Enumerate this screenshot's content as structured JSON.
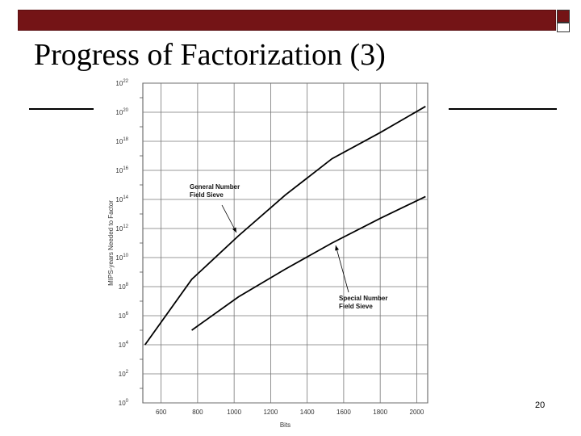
{
  "slide": {
    "title": "Progress of Factorization (3)",
    "page_number": "20",
    "colors": {
      "header_bar": "#741416"
    }
  },
  "chart_data": {
    "type": "line",
    "xlabel": "Bits",
    "ylabel": "MIPS-years Needed to Factor",
    "xlim": [
      500,
      2060
    ],
    "ylim": [
      0,
      22
    ],
    "y_log_base": 10,
    "grid": true,
    "x_ticks": [
      600,
      800,
      1000,
      1200,
      1400,
      1600,
      1800,
      2000
    ],
    "y_ticks": [
      {
        "base": "10",
        "exp": "0"
      },
      {
        "base": "10",
        "exp": "2"
      },
      {
        "base": "10",
        "exp": "4"
      },
      {
        "base": "10",
        "exp": "6"
      },
      {
        "base": "10",
        "exp": "8"
      },
      {
        "base": "10",
        "exp": "10"
      },
      {
        "base": "10",
        "exp": "12"
      },
      {
        "base": "10",
        "exp": "14"
      },
      {
        "base": "10",
        "exp": "16"
      },
      {
        "base": "10",
        "exp": "18"
      },
      {
        "base": "10",
        "exp": "20"
      },
      {
        "base": "10",
        "exp": "22"
      }
    ],
    "series": [
      {
        "name": "General Number Field Sieve",
        "label_lines": [
          "General Number",
          "Field Sieve"
        ],
        "x": [
          512,
          768,
          1024,
          1280,
          1536,
          1800,
          2048
        ],
        "y": [
          4,
          8.5,
          11.5,
          14.3,
          16.8,
          18.6,
          20.4
        ]
      },
      {
        "name": "Special Number Field Sieve",
        "label_lines": [
          "Special Number",
          "Field Sieve"
        ],
        "x": [
          768,
          1024,
          1280,
          1536,
          1800,
          2048
        ],
        "y": [
          5,
          7.3,
          9.2,
          11,
          12.7,
          14.2
        ]
      }
    ]
  }
}
